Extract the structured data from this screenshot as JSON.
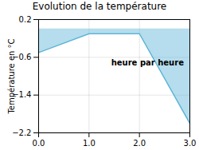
{
  "chart_data": {
    "type": "area",
    "title": "Evolution de la température",
    "y_label": "Température en °C",
    "annotations": [
      "heure par heure"
    ],
    "x": [
      0,
      1,
      2,
      3
    ],
    "values": [
      -0.5,
      -0.1,
      -0.1,
      -2.0
    ],
    "color": "#5ab4d6",
    "xlim": [
      0,
      3
    ],
    "xticks": [
      0,
      1,
      2,
      3
    ],
    "ylim": [
      -2.2,
      0.2
    ],
    "yticks": [
      0.2,
      -0.6,
      -1.4,
      -2.2
    ],
    "grid": true
  }
}
